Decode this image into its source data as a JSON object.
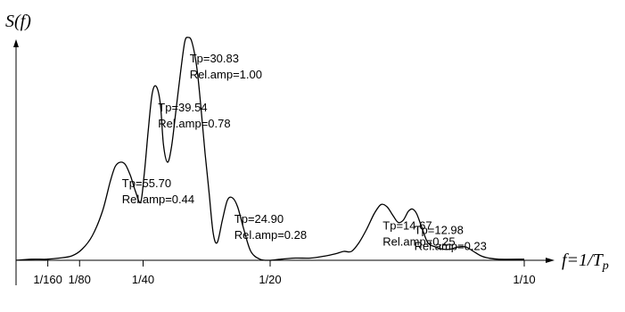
{
  "chart_data": {
    "type": "line",
    "title": "",
    "ylabel": "S(f)",
    "xlabel": "f=1/T",
    "xlabel_sub": "p",
    "xlim": [
      0,
      0.1
    ],
    "ylim": [
      0,
      1.05
    ],
    "xticks": [
      {
        "value": 0.00625,
        "label": "1/160"
      },
      {
        "value": 0.0125,
        "label": "1/80"
      },
      {
        "value": 0.025,
        "label": "1/40"
      },
      {
        "value": 0.05,
        "label": "1/20"
      },
      {
        "value": 0.1,
        "label": "1/10"
      }
    ],
    "series": [
      {
        "x": [
          0.0,
          0.003,
          0.006,
          0.0085,
          0.011,
          0.013,
          0.015,
          0.017,
          0.0185,
          0.0195,
          0.0205,
          0.0215,
          0.0225,
          0.0235,
          0.0245,
          0.0252,
          0.026,
          0.0268,
          0.0276,
          0.0284,
          0.029,
          0.0298,
          0.0306,
          0.0314,
          0.0324,
          0.0332,
          0.0338,
          0.0346,
          0.0356,
          0.0364,
          0.0372,
          0.038,
          0.0388,
          0.0396,
          0.0406,
          0.0416,
          0.0426,
          0.0436,
          0.0448,
          0.0462,
          0.048,
          0.05,
          0.052,
          0.055,
          0.058,
          0.061,
          0.063,
          0.0645,
          0.066,
          0.0675,
          0.069,
          0.0705,
          0.0718,
          0.073,
          0.0742,
          0.0752,
          0.0762,
          0.0772,
          0.078,
          0.0788,
          0.0798,
          0.081,
          0.0825,
          0.084,
          0.0855,
          0.087,
          0.0885,
          0.09,
          0.0915,
          0.093,
          0.095,
          0.1
        ],
        "y": [
          0.0,
          0.005,
          0.005,
          0.01,
          0.02,
          0.05,
          0.11,
          0.22,
          0.35,
          0.42,
          0.44,
          0.43,
          0.38,
          0.31,
          0.26,
          0.38,
          0.58,
          0.75,
          0.78,
          0.7,
          0.52,
          0.44,
          0.51,
          0.66,
          0.85,
          0.98,
          1.0,
          0.98,
          0.86,
          0.68,
          0.48,
          0.3,
          0.12,
          0.08,
          0.18,
          0.27,
          0.28,
          0.24,
          0.14,
          0.04,
          0.005,
          0.0,
          0.005,
          0.01,
          0.01,
          0.02,
          0.03,
          0.04,
          0.04,
          0.08,
          0.14,
          0.21,
          0.25,
          0.24,
          0.2,
          0.17,
          0.18,
          0.22,
          0.23,
          0.21,
          0.15,
          0.08,
          0.06,
          0.05,
          0.05,
          0.06,
          0.06,
          0.04,
          0.02,
          0.01,
          0.005,
          0.005
        ]
      }
    ],
    "annotations": [
      {
        "x": 0.0205,
        "y": 0.44,
        "tp": "Tp=55.70",
        "rel": "Rel.amp=0.44"
      },
      {
        "x": 0.0276,
        "y": 0.78,
        "tp": "Tp=39.54",
        "rel": "Rel.amp=0.78"
      },
      {
        "x": 0.0338,
        "y": 1.0,
        "tp": "Tp=30.83",
        "rel": "Rel.amp=1.00"
      },
      {
        "x": 0.0426,
        "y": 0.28,
        "tp": "Tp=24.90",
        "rel": "Rel.amp=0.28"
      },
      {
        "x": 0.0718,
        "y": 0.25,
        "tp": "Tp=14.67",
        "rel": "Rel.amp=0.25"
      },
      {
        "x": 0.078,
        "y": 0.23,
        "tp": "Tp=12.98",
        "rel": "Rel.amp=0.23"
      }
    ],
    "grid": false,
    "legend": "none"
  }
}
